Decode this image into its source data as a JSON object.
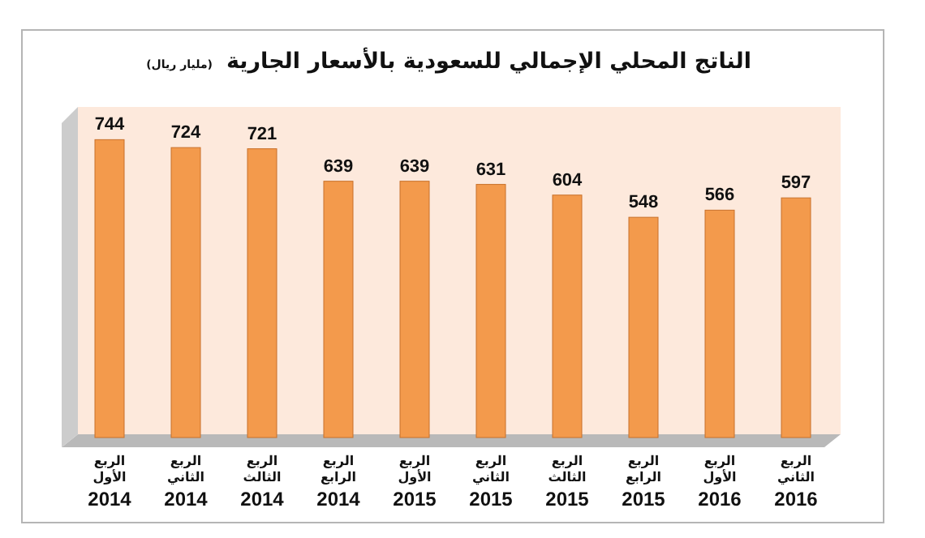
{
  "chart_data": {
    "type": "bar",
    "title": "الناتج المحلي الإجمالي للسعودية بالأسعار الجارية",
    "subtitle": "(مليار ريال)",
    "categories": [
      "الربع الأول 2014",
      "الربع الثاني 2014",
      "الربع الثالث 2014",
      "الربع الرابع 2014",
      "الربع الأول 2015",
      "الربع الثاني 2015",
      "الربع الثالث 2015",
      "الربع الرابع 2015",
      "الربع الأول 2016",
      "الربع الثاني 2016"
    ],
    "values": [
      744,
      724,
      721,
      639,
      639,
      631,
      604,
      548,
      566,
      597
    ],
    "color": "#f39a4c",
    "data_labels": true
  }
}
